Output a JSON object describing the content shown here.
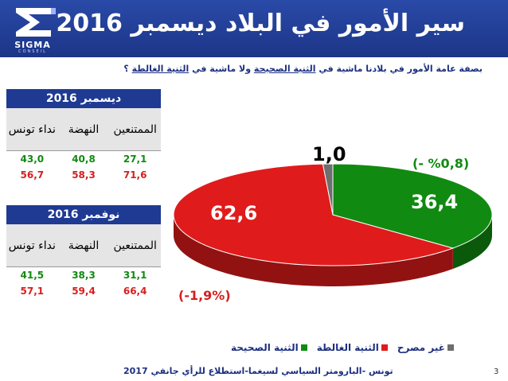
{
  "header": {
    "title": "سير الأمور في البلاد ديسمبر 2016",
    "logo_text": "SIGMA",
    "logo_sub": "CONSEIL"
  },
  "question": {
    "part1": "بصفة عامة الأمور في بلادنا ماشية في ",
    "part2": "الثنية الصحيحة",
    "part3": " ولا ماشية في ",
    "part4": "الثنية الغالطة",
    "part5": " ؟"
  },
  "tables": {
    "december": {
      "title": "ديسمبر 2016",
      "columns": [
        "الممتنعين",
        "النهضة",
        "نداء تونس"
      ],
      "row_green": [
        "27,1",
        "40,8",
        "43,0"
      ],
      "row_red": [
        "71,6",
        "58,3",
        "56,7"
      ]
    },
    "november": {
      "title": "نوفمبر 2016",
      "columns": [
        "الممتنعين",
        "النهضة",
        "نداء تونس"
      ],
      "row_green": [
        "31,1",
        "38,3",
        "41,5"
      ],
      "row_red": [
        "66,4",
        "59,4",
        "57,1"
      ]
    }
  },
  "chart_data": {
    "type": "pie",
    "style": "3d",
    "slices": [
      {
        "label": "الثنية الصحيحة",
        "value": 36.4,
        "display": "36,4",
        "color": "#118a11",
        "change": "(- %0,8)"
      },
      {
        "label": "الثنية الغالطة",
        "value": 62.6,
        "display": "62,6",
        "color": "#e01b1b",
        "change": "(-1,9%)"
      },
      {
        "label": "غير مصرح",
        "value": 1.0,
        "display": "1,0",
        "color": "#6e6e6e"
      }
    ],
    "legend_placement": "bottom"
  },
  "legend": {
    "items": [
      {
        "label": "الثنية الصحيحة",
        "color": "#118a11"
      },
      {
        "label": "الثنية الغالطة",
        "color": "#e01b1b"
      },
      {
        "label": "غير مصرح",
        "color": "#6e6e6e"
      }
    ]
  },
  "footer": {
    "text": "تونس -البارومتر السياسي لسيغما-استطلاع للرأي جانفي 2017",
    "page": "3"
  }
}
